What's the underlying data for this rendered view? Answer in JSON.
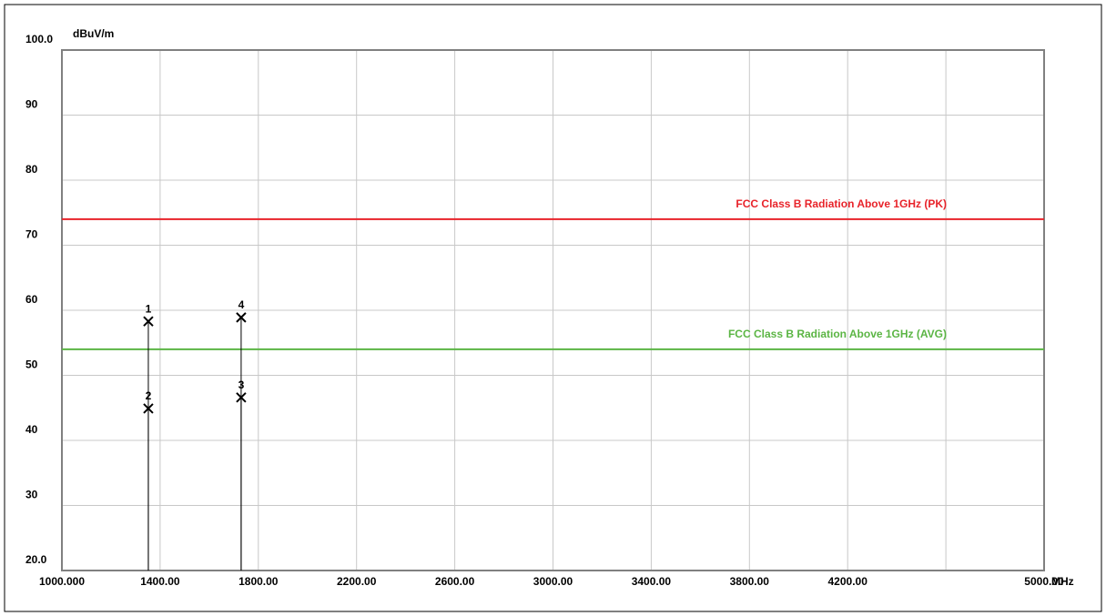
{
  "chart_data": {
    "type": "scatter",
    "y_unit": "dBuV/m",
    "x_unit": "MHz",
    "xlim": [
      1000,
      5000
    ],
    "ylim": [
      20,
      100
    ],
    "xticks": [
      {
        "value": 1000,
        "label": "1000.000"
      },
      {
        "value": 1400,
        "label": "1400.00"
      },
      {
        "value": 1800,
        "label": "1800.00"
      },
      {
        "value": 2200,
        "label": "2200.00"
      },
      {
        "value": 2600,
        "label": "2600.00"
      },
      {
        "value": 3000,
        "label": "3000.00"
      },
      {
        "value": 3400,
        "label": "3400.00"
      },
      {
        "value": 3800,
        "label": "3800.00"
      },
      {
        "value": 4200,
        "label": "4200.00"
      },
      {
        "value": 4600
      },
      {
        "value": 5000,
        "label": "5000.00"
      }
    ],
    "yticks": [
      {
        "value": 20,
        "label": "20.0"
      },
      30,
      40,
      50,
      60,
      70,
      80,
      90,
      {
        "value": 100,
        "label": "100.0"
      }
    ],
    "grid": true,
    "limits": [
      {
        "name": "FCC Class B Radiation Above 1GHz (PK)",
        "color": "#e8232a",
        "value": 74
      },
      {
        "name": "FCC Class B Radiation Above 1GHz (AVG)",
        "color": "#5bb544",
        "value": 54
      }
    ],
    "series": [
      {
        "color": "#000000",
        "labels": [
          "1",
          "2",
          "3",
          "4"
        ],
        "x": [
          1352,
          1352,
          1730,
          1730
        ],
        "values": [
          58.3,
          44.9,
          46.6,
          58.9
        ]
      }
    ]
  }
}
